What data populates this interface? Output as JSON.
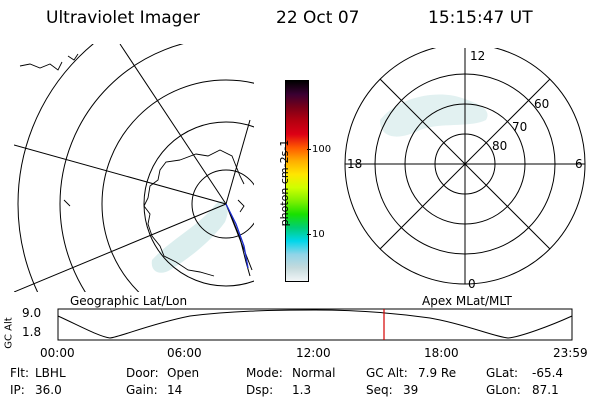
{
  "header": {
    "instrument": "Ultraviolet Imager",
    "date": "22 Oct 07",
    "time": "15:15:47 UT"
  },
  "colorbar": {
    "label": "photon cm-2s-1",
    "ticks": [
      "100",
      "10"
    ],
    "colors": [
      "#000000",
      "#3a0032",
      "#7a0018",
      "#b50010",
      "#dd0015",
      "#ff5a00",
      "#ffae00",
      "#ffe600",
      "#cfff00",
      "#7ff000",
      "#18e000",
      "#00ce75",
      "#00d6ea",
      "#8fd4e8",
      "#c4dadd",
      "#f1f5f6"
    ]
  },
  "geo_panel": {
    "label": "Geographic Lat/Lon"
  },
  "apex_panel": {
    "label": "Apex MLat/MLT",
    "mlt_labels": {
      "top": "12",
      "left": "18",
      "right": "6",
      "bottom": "0"
    },
    "lat_labels": [
      "60",
      "70",
      "80"
    ]
  },
  "altitude_plot": {
    "ylabel": "GC Alt",
    "yticks": [
      "9.0",
      "1.8"
    ],
    "xticks": [
      "00:00",
      "06:00",
      "12:00",
      "18:00",
      "23:59"
    ],
    "current_marker_color": "#d40000"
  },
  "info": {
    "row1": [
      {
        "key": "Flt:",
        "value": "LBHL"
      },
      {
        "key": "Door:",
        "value": "Open"
      },
      {
        "key": "Mode:",
        "value": "Normal"
      },
      {
        "key": "GC Alt:",
        "value": "7.9 Re"
      },
      {
        "key": "GLat:",
        "value": "-65.4"
      }
    ],
    "row2": [
      {
        "key": "IP:",
        "value": "36.0"
      },
      {
        "key": "Gain:",
        "value": "14"
      },
      {
        "key": "Dsp:",
        "value": "1.3"
      },
      {
        "key": "Seq:",
        "value": "39"
      },
      {
        "key": "GLon:",
        "value": "87.1"
      }
    ]
  }
}
